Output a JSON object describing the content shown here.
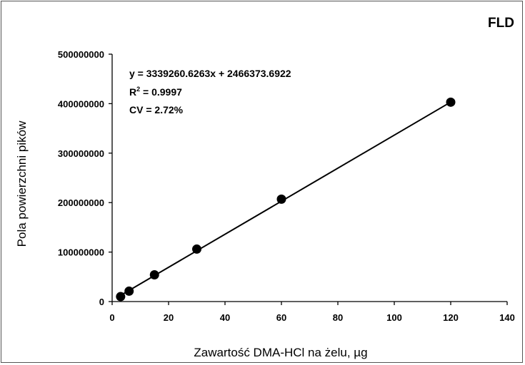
{
  "chart_data": {
    "type": "scatter",
    "corner_label": "FLD",
    "xlabel": "Zawartość DMA-HCl na żelu, µg",
    "ylabel": "Pola powierzchni pików",
    "xlim": [
      0,
      140
    ],
    "ylim": [
      0,
      500000000
    ],
    "x_ticks": [
      0,
      20,
      40,
      60,
      80,
      100,
      120,
      140
    ],
    "x_tick_labels": [
      "0",
      "20",
      "40",
      "60",
      "80",
      "100",
      "120",
      "140"
    ],
    "y_ticks": [
      0,
      100000000,
      200000000,
      300000000,
      400000000,
      500000000
    ],
    "y_tick_labels": [
      "0",
      "100000000",
      "200000000",
      "300000000",
      "400000000",
      "500000000"
    ],
    "grid": false,
    "series": [
      {
        "x": [
          3,
          6,
          15,
          30,
          60,
          120
        ],
        "y": [
          10000000,
          21000000,
          54000000,
          106000000,
          207000000,
          403000000
        ]
      }
    ],
    "trendline": {
      "slope": 3339260.6263,
      "intercept": 2466373.6922,
      "x_range": [
        3,
        120
      ]
    },
    "annotations": {
      "equation": "y = 3339260.6263x + 2466373.6922",
      "r2_prefix": "R",
      "r2_sup": "2",
      "r2_value": " = 0.9997",
      "cv": "CV = 2.72%"
    }
  }
}
